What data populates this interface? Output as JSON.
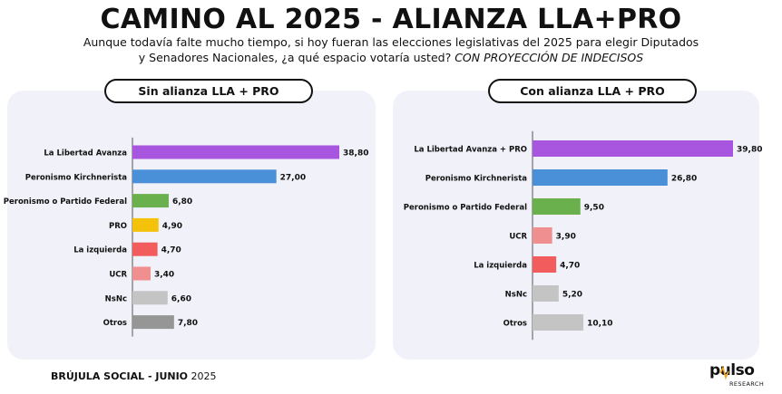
{
  "title": "CAMINO AL 2025 - ALIANZA LLA+PRO",
  "subtitle_line1": "Aunque todavía falte mucho tiempo, si hoy fueran las elecciones legislativas del 2025 para elegir Diputados",
  "subtitle_line2_plain": "y Senadores Nacionales, ¿a qué espacio votaría usted?",
  "subtitle_line2_italic": "CON PROYECCIÓN DE INDECISOS",
  "footer_bold": "BRÚJULA SOCIAL - JUNIO",
  "footer_year": "2025",
  "logo_word": "pulso",
  "logo_sub": "RESEARCH",
  "chart_data": [
    {
      "type": "bar",
      "orientation": "horizontal",
      "title": "Sin alianza LLA + PRO",
      "categories": [
        "La Libertad Avanza",
        "Peronismo Kirchnerista",
        "Peronismo o Partido Federal",
        "PRO",
        "La izquierda",
        "UCR",
        "NsNc",
        "Otros"
      ],
      "values": [
        38.8,
        27.0,
        6.8,
        4.9,
        4.7,
        3.4,
        6.6,
        7.8
      ],
      "labels": [
        "38,80",
        "27,00",
        "6,80",
        "4,90",
        "4,70",
        "3,40",
        "6,60",
        "7,80"
      ],
      "colors": [
        "#a855e0",
        "#4a90d9",
        "#6ab04c",
        "#f5c20b",
        "#f25c5c",
        "#ef8f8f",
        "#c4c4c4",
        "#969696"
      ]
    },
    {
      "type": "bar",
      "orientation": "horizontal",
      "title": "Con alianza LLA + PRO",
      "categories": [
        "La Libertad Avanza + PRO",
        "Peronismo Kirchnerista",
        "Peronismo o Partido Federal",
        "UCR",
        "La izquierda",
        "NsNc",
        "Otros"
      ],
      "values": [
        39.8,
        26.8,
        9.5,
        3.9,
        4.7,
        5.2,
        10.1
      ],
      "labels": [
        "39,80",
        "26,80",
        "9,50",
        "3,90",
        "4,70",
        "5,20",
        "10,10"
      ],
      "colors": [
        "#a855e0",
        "#4a90d9",
        "#6ab04c",
        "#ef8f8f",
        "#f25c5c",
        "#c4c4c4",
        "#c4c4c4"
      ]
    }
  ]
}
